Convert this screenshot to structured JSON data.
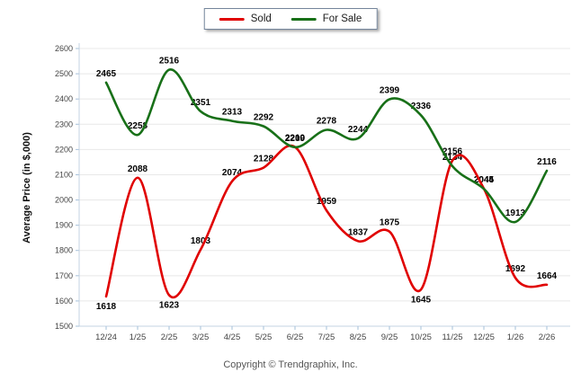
{
  "legend": {
    "items": [
      {
        "label": "Sold",
        "color": "#e00000"
      },
      {
        "label": "For Sale",
        "color": "#187018"
      }
    ]
  },
  "footer": {
    "copyright": "Copyright © Trendgraphix, Inc."
  },
  "chart_data": {
    "type": "line",
    "title": "",
    "xlabel": "",
    "ylabel": "Average Price (in $,000)",
    "categories": [
      "12/24",
      "1/25",
      "2/25",
      "3/25",
      "4/25",
      "5/25",
      "6/25",
      "7/25",
      "8/25",
      "9/25",
      "10/25",
      "11/25",
      "12/25",
      "1/26",
      "2/26"
    ],
    "series": [
      {
        "name": "Sold",
        "color": "#e00000",
        "values": [
          1618,
          2088,
          1623,
          1803,
          2074,
          2128,
          2210,
          1959,
          1837,
          1875,
          1645,
          2156,
          2045,
          1692,
          1664
        ],
        "label_below_indexes": [
          0,
          2,
          10
        ]
      },
      {
        "name": "For Sale",
        "color": "#187018",
        "values": [
          2465,
          2258,
          2516,
          2351,
          2313,
          2292,
          2209,
          2278,
          2244,
          2399,
          2336,
          2134,
          2044,
          1913,
          2116
        ],
        "label_below_indexes": []
      }
    ],
    "ylim": [
      1500,
      2600
    ],
    "ytick_step": 100,
    "grid": true,
    "legend_position": "top-center"
  }
}
